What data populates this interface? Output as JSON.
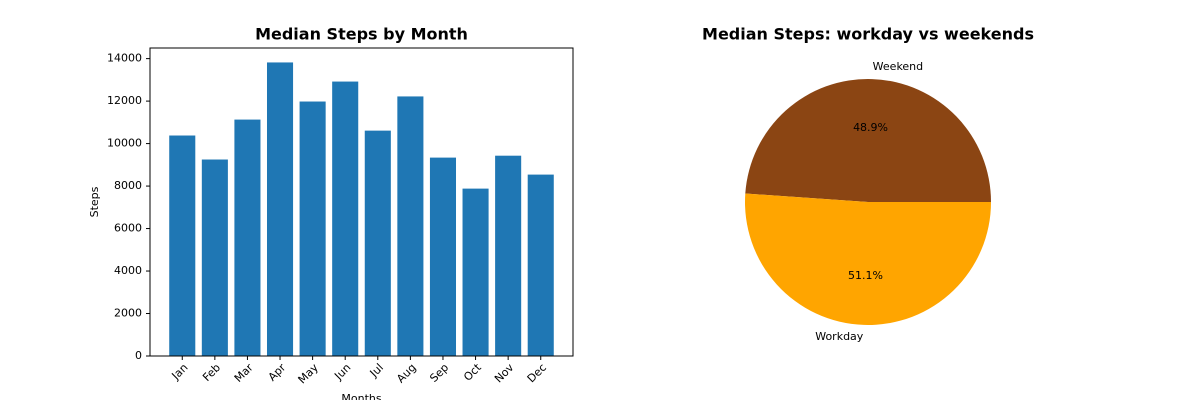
{
  "chart_data": [
    {
      "type": "bar",
      "title": "Median Steps by Month",
      "x_label": "Months",
      "y_label": "Steps",
      "categories": [
        "Jan",
        "Feb",
        "Mar",
        "Apr",
        "May",
        "Jun",
        "Jul",
        "Aug",
        "Sep",
        "Oct",
        "Nov",
        "Dec"
      ],
      "values": [
        10380,
        9250,
        11130,
        13820,
        11980,
        12920,
        10610,
        12220,
        9340,
        7880,
        9430,
        8540
      ],
      "color": "#1f77b4",
      "ylim": [
        0,
        14500
      ],
      "yticks": [
        0,
        2000,
        4000,
        6000,
        8000,
        10000,
        12000,
        14000
      ]
    },
    {
      "type": "pie",
      "title": "Median Steps: workday vs weekends",
      "categories": [
        "Weekend",
        "Workday"
      ],
      "values": [
        48.9,
        51.1
      ],
      "value_labels": [
        "48.9%",
        "51.1%"
      ],
      "colors": [
        "#8b4513",
        "#ffa500"
      ]
    }
  ]
}
